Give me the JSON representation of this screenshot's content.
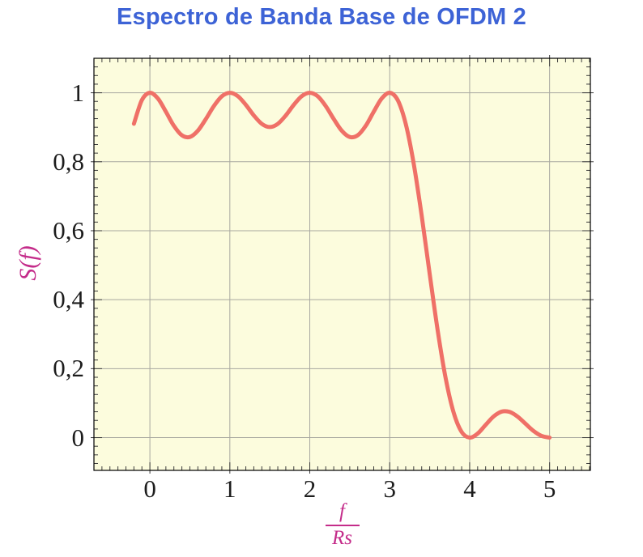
{
  "title": {
    "text": "Espectro de Banda Base de OFDM 2",
    "color": "#3d63d6"
  },
  "y_axis_label": {
    "text": "S(f)",
    "color": "#c42c8a"
  },
  "x_axis_label": {
    "numerator": "f",
    "denominator": "Rs",
    "color": "#c42c8a"
  },
  "chart_data": {
    "type": "line",
    "title": "Espectro de Banda Base de OFDM 2",
    "xlabel": "f/Rs",
    "ylabel": "S(f)",
    "xlim": [
      -0.7,
      5.51
    ],
    "ylim": [
      -0.095,
      1.1
    ],
    "grid": true,
    "legend": "none",
    "x_ticks": {
      "values": [
        0,
        1,
        2,
        3,
        4,
        5
      ],
      "labels": [
        "0",
        "1",
        "2",
        "3",
        "4",
        "5"
      ],
      "minor_step": 0.1
    },
    "y_ticks": {
      "values": [
        0,
        0.2,
        0.4,
        0.6,
        0.8,
        1
      ],
      "labels": [
        "0",
        "0,2",
        "0,4",
        "0,6",
        "0,8",
        "1"
      ],
      "minor_step": 0.025
    },
    "colors": {
      "plot_bg": "#fcfcdd",
      "grid": "#a8a8a0",
      "border": "#000000",
      "tick": "#3c3c3c",
      "tick_label": "#1c1c1c",
      "curve": "#ef7067"
    },
    "series": [
      {
        "name": "S(f)",
        "color": "#ef7067",
        "line_width": 5,
        "x": [
          -0.2,
          -0.1,
          0,
          0.1,
          0.2,
          0.3,
          0.4,
          0.5,
          0.6,
          0.7,
          0.8,
          0.9,
          1,
          1.1,
          1.2,
          1.3,
          1.4,
          1.5,
          1.6,
          1.7,
          1.8,
          1.9,
          2,
          2.1,
          2.2,
          2.3,
          2.4,
          2.5,
          2.6,
          2.7,
          2.8,
          2.9,
          3,
          3.1,
          3.2,
          3.3,
          3.4,
          3.5,
          3.6,
          3.7,
          3.8,
          3.9,
          4,
          4.1,
          4.2,
          4.3,
          4.4,
          4.5,
          4.6,
          4.7,
          4.8,
          4.9,
          5
        ],
        "y": [
          0.9101,
          0.9789,
          1,
          0.9835,
          0.9451,
          0.9042,
          0.8767,
          0.8718,
          0.89,
          0.9239,
          0.9614,
          0.9898,
          1,
          0.9903,
          0.965,
          0.9343,
          0.9099,
          0.9006,
          0.9099,
          0.9343,
          0.965,
          0.9903,
          1,
          0.9898,
          0.9614,
          0.9239,
          0.89,
          0.8718,
          0.8767,
          0.9042,
          0.9451,
          0.9835,
          1,
          0.9789,
          0.9101,
          0.7947,
          0.6434,
          0.4748,
          0.311,
          0.1722,
          0.0724,
          0.0164,
          0,
          0.0118,
          0.0369,
          0.0614,
          0.0753,
          0.0745,
          0.0608,
          0.0399,
          0.0192,
          0.0049,
          0
        ]
      }
    ]
  }
}
